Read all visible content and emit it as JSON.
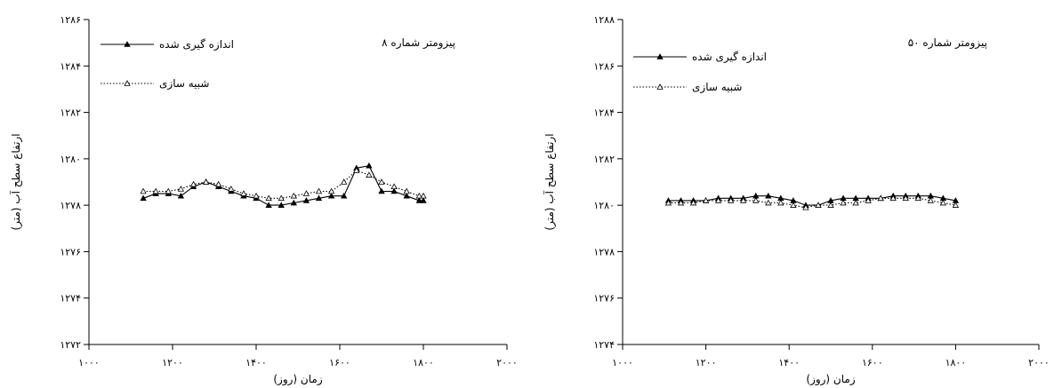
{
  "chart_data": [
    {
      "type": "line",
      "title": "پیزومتر شماره ۸",
      "xlabel": "زمان (روز)",
      "ylabel": "ارتفاع سطح آب (متر)",
      "xlim": [
        1000,
        2000
      ],
      "ylim": [
        1272,
        1286
      ],
      "x_ticks": [
        1000,
        1200,
        1400,
        1600,
        1800,
        2000
      ],
      "x_tick_labels": [
        "۱۰۰۰",
        "۱۲۰۰",
        "۱۴۰۰",
        "۱۶۰۰",
        "۱۸۰۰",
        "۲۰۰۰"
      ],
      "y_ticks": [
        1272,
        1274,
        1276,
        1278,
        1280,
        1282,
        1284,
        1286
      ],
      "y_tick_labels": [
        "۱۲۷۲",
        "۱۲۷۴",
        "۱۲۷۶",
        "۱۲۷۸",
        "۱۲۸۰",
        "۱۲۸۲",
        "۱۲۸۴",
        "۱۲۸۶"
      ],
      "legend_position": "top-left",
      "series": [
        {
          "name": "اندازه گیری شده",
          "style": "solid",
          "marker": "filled-triangle",
          "x": [
            1130,
            1160,
            1190,
            1220,
            1250,
            1280,
            1310,
            1340,
            1370,
            1400,
            1430,
            1460,
            1490,
            1520,
            1550,
            1580,
            1610,
            1640,
            1670,
            1700,
            1730,
            1760,
            1790,
            1800
          ],
          "y": [
            1278.3,
            1278.5,
            1278.5,
            1278.4,
            1278.8,
            1279.0,
            1278.8,
            1278.6,
            1278.4,
            1278.3,
            1278.0,
            1278.0,
            1278.1,
            1278.2,
            1278.3,
            1278.4,
            1278.4,
            1279.6,
            1279.7,
            1278.6,
            1278.6,
            1278.4,
            1278.2,
            1278.2
          ]
        },
        {
          "name": "شبیه سازی",
          "style": "dotted",
          "marker": "open-triangle",
          "x": [
            1130,
            1160,
            1190,
            1220,
            1250,
            1280,
            1310,
            1340,
            1370,
            1400,
            1430,
            1460,
            1490,
            1520,
            1550,
            1580,
            1610,
            1640,
            1670,
            1700,
            1730,
            1760,
            1790,
            1800
          ],
          "y": [
            1278.6,
            1278.6,
            1278.6,
            1278.7,
            1278.9,
            1279.0,
            1278.9,
            1278.7,
            1278.5,
            1278.4,
            1278.3,
            1278.3,
            1278.4,
            1278.5,
            1278.6,
            1278.6,
            1279.0,
            1279.5,
            1279.3,
            1279.0,
            1278.8,
            1278.6,
            1278.4,
            1278.4
          ]
        }
      ]
    },
    {
      "type": "line",
      "title": "پیزومتر شماره ۵۰",
      "xlabel": "زمان (روز)",
      "ylabel": "ارتفاع سطح آب (متر)",
      "xlim": [
        1000,
        2000
      ],
      "ylim": [
        1274,
        1288
      ],
      "x_ticks": [
        1000,
        1200,
        1400,
        1600,
        1800,
        2000
      ],
      "x_tick_labels": [
        "۱۰۰۰",
        "۱۲۰۰",
        "۱۴۰۰",
        "۱۶۰۰",
        "۱۸۰۰",
        "۲۰۰۰"
      ],
      "y_ticks": [
        1274,
        1276,
        1278,
        1280,
        1282,
        1284,
        1286,
        1288
      ],
      "y_tick_labels": [
        "۱۲۷۴",
        "۱۲۷۶",
        "۱۲۷۸",
        "۱۲۸۰",
        "۱۲۸۲",
        "۱۲۸۴",
        "۱۲۸۶",
        "۱۲۸۸"
      ],
      "legend_position": "top-left",
      "series": [
        {
          "name": "اندازه گیری شده",
          "style": "solid",
          "marker": "filled-triangle",
          "x": [
            1110,
            1140,
            1170,
            1200,
            1230,
            1260,
            1290,
            1320,
            1350,
            1380,
            1410,
            1440,
            1470,
            1500,
            1530,
            1560,
            1590,
            1620,
            1650,
            1680,
            1710,
            1740,
            1770,
            1800
          ],
          "y": [
            1280.2,
            1280.2,
            1280.2,
            1280.2,
            1280.3,
            1280.3,
            1280.3,
            1280.4,
            1280.4,
            1280.3,
            1280.2,
            1280.0,
            1280.0,
            1280.2,
            1280.3,
            1280.3,
            1280.3,
            1280.3,
            1280.4,
            1280.4,
            1280.4,
            1280.4,
            1280.3,
            1280.2
          ]
        },
        {
          "name": "شبیه سازی",
          "style": "dotted",
          "marker": "open-triangle",
          "x": [
            1110,
            1140,
            1170,
            1200,
            1230,
            1260,
            1290,
            1320,
            1350,
            1380,
            1410,
            1440,
            1470,
            1500,
            1530,
            1560,
            1590,
            1620,
            1650,
            1680,
            1710,
            1740,
            1770,
            1800
          ],
          "y": [
            1280.1,
            1280.1,
            1280.1,
            1280.2,
            1280.2,
            1280.2,
            1280.2,
            1280.2,
            1280.1,
            1280.1,
            1280.0,
            1279.9,
            1280.0,
            1280.0,
            1280.1,
            1280.1,
            1280.2,
            1280.3,
            1280.3,
            1280.3,
            1280.3,
            1280.2,
            1280.1,
            1280.0
          ]
        }
      ]
    }
  ]
}
